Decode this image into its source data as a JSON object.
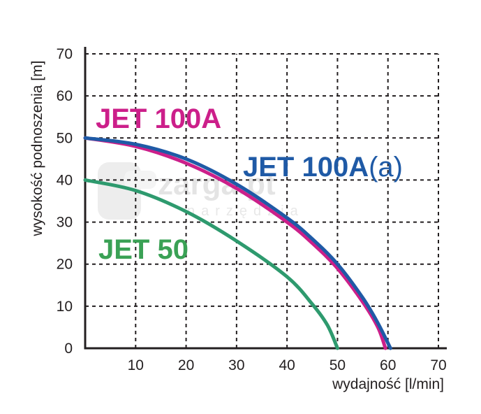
{
  "chart_data": {
    "type": "line",
    "title": "",
    "xlabel": "wydajność [l/min]",
    "ylabel": "wysokość podnoszenia [m]",
    "xlim": [
      0,
      70
    ],
    "ylim": [
      0,
      70
    ],
    "x_ticks": [
      "10",
      "20",
      "30",
      "40",
      "50",
      "60",
      "70"
    ],
    "y_ticks": [
      "0",
      "10",
      "20",
      "30",
      "40",
      "50",
      "60",
      "70"
    ],
    "grid": true,
    "series": [
      {
        "name": "JET 100A",
        "label_text": "JET 100A",
        "color": "#cc1f8a",
        "x": [
          0,
          10,
          20,
          30,
          40,
          45,
          50,
          55,
          58,
          59.5
        ],
        "y": [
          50,
          48,
          44,
          38,
          30,
          25,
          19,
          11,
          5,
          0
        ]
      },
      {
        "name": "JET 100A(a)",
        "label_text": "JET 100A",
        "label_suffix": "(a)",
        "color": "#1f5aa6",
        "x": [
          0,
          10,
          20,
          30,
          40,
          45,
          50,
          55,
          58,
          60.5
        ],
        "y": [
          50,
          48.5,
          45,
          39,
          31,
          26,
          20,
          12,
          6,
          0
        ]
      },
      {
        "name": "JET 50",
        "label_text": "JET 50",
        "color": "#2e9a6e",
        "x": [
          0,
          10,
          20,
          30,
          40,
          45,
          48,
          50
        ],
        "y": [
          40,
          37.5,
          32.5,
          25.5,
          17,
          10.5,
          5.5,
          0
        ]
      }
    ],
    "label_colors": {
      "JET 100A": "#cc1f8a",
      "JET 100A(a)": "#1f5aa6",
      "JET 50": "#3aa155"
    }
  },
  "watermark": {
    "text": "zarga.pt",
    "subtext": "narzędzia"
  }
}
